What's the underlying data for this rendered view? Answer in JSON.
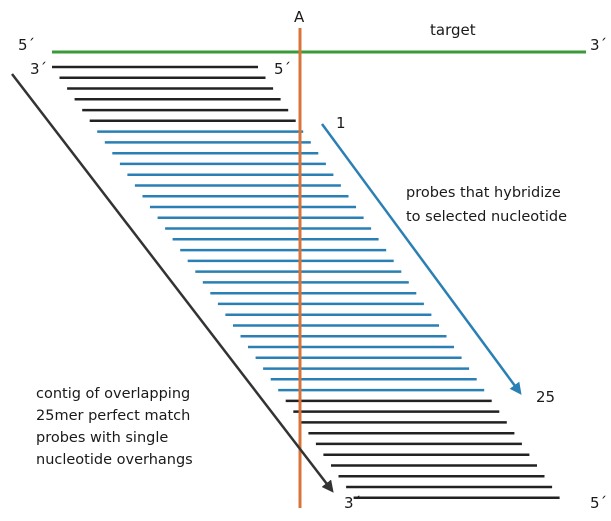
{
  "position_marker": "A",
  "target": {
    "label": "target",
    "end_left": "5´",
    "end_right": "3´",
    "color": "#3a9a3a"
  },
  "probe_top_labels": {
    "left": "3´",
    "right": "5´"
  },
  "probe_bottom_labels": {
    "left": "3´",
    "right": "5´"
  },
  "selected_probes": {
    "first_index": "1",
    "last_index": "25",
    "count": 25,
    "caption_line1": "probes that hybridize",
    "caption_line2": "to selected nucleotide",
    "color": "#2a7fb4"
  },
  "contig": {
    "caption_line1": "contig of overlapping",
    "caption_line2": "25mer perfect match",
    "caption_line3": "probes with single",
    "caption_line4": "nucleotide overhangs",
    "color": "#222222"
  },
  "top_black_probe_count": 6,
  "bottom_black_probe_count": 10,
  "marker_color": "#d8743a"
}
